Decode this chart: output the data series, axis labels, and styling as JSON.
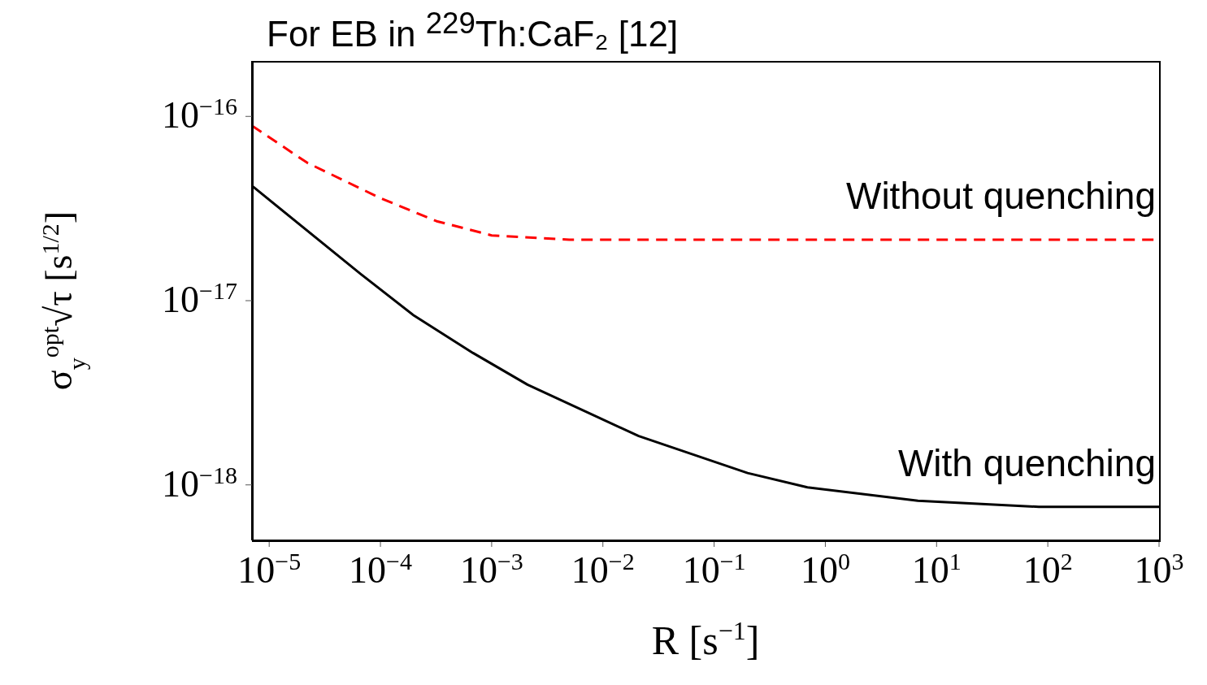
{
  "chart_data": {
    "type": "line",
    "title": "For EB in $^{229}$Th:CaF₂ [12]",
    "xlabel": "R [s$^{−1}$]",
    "ylabel": "σ$_{y}$$^{opt}$√τ [s$^{1/2}$]",
    "log": "xy",
    "marker": "none",
    "xlim": [
      7e-06,
      1000
    ],
    "ylim": [
      5e-19,
      2e-16
    ],
    "xticks": [
      {
        "value": 1e-05,
        "label": "10$^{−5}$"
      },
      {
        "value": 0.0001,
        "label": "10$^{−4}$"
      },
      {
        "value": 0.001,
        "label": "10$^{−3}$"
      },
      {
        "value": 0.01,
        "label": "10$^{−2}$"
      },
      {
        "value": 0.1,
        "label": "10$^{−1}$"
      },
      {
        "value": 1,
        "label": "10$^{0}$"
      },
      {
        "value": 10,
        "label": "10$^{1}$"
      },
      {
        "value": 100,
        "label": "10$^{2}$"
      },
      {
        "value": 1000,
        "label": "10$^{3}$"
      }
    ],
    "yticks": [
      {
        "value": 1e-18,
        "label": "10$^{−18}$"
      },
      {
        "value": 1e-17,
        "label": "10$^{−17}$"
      },
      {
        "value": 1e-16,
        "label": "10$^{−16}$"
      }
    ],
    "series": [
      {
        "color": "#ff0000",
        "line_style": "dashed",
        "x": [
          7e-06,
          2.2e-05,
          0.0001,
          0.00032,
          0.001,
          0.005,
          1000
        ],
        "values": [
          8.9e-17,
          5.6e-17,
          3.6e-17,
          2.7e-17,
          2.26e-17,
          2.14e-17,
          2.14e-17
        ]
      },
      {
        "color": "#000000",
        "line_style": "solid",
        "x": [
          7e-06,
          6.6e-05,
          0.0002,
          0.00068,
          0.0021,
          0.021,
          0.2,
          0.69,
          6.8,
          83,
          1000
        ],
        "values": [
          4.2e-17,
          1.4e-17,
          8.3e-18,
          5.2e-18,
          3.5e-18,
          1.84e-18,
          1.16e-18,
          9.7e-19,
          8.2e-19,
          7.6e-19,
          7.6e-19
        ]
      }
    ],
    "annotations": [
      "Without quenching",
      "With quenching"
    ]
  }
}
